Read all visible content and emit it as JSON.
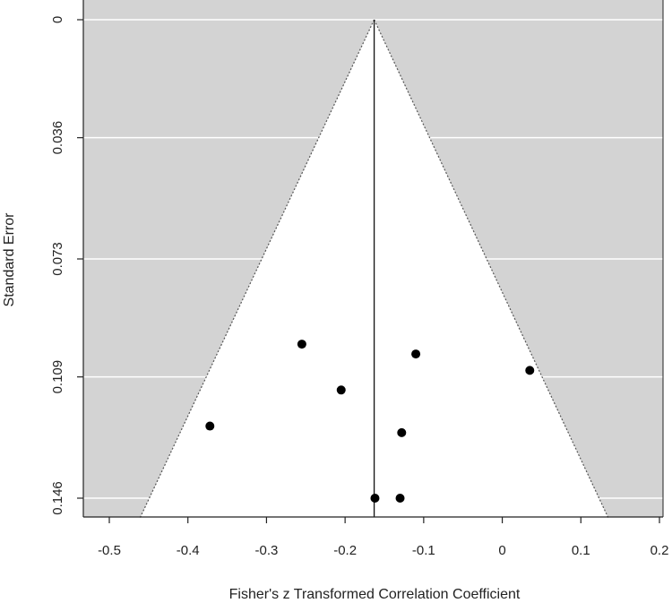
{
  "chart_data": {
    "type": "scatter",
    "subtype": "funnel-plot",
    "xlabel": "Fisher's z Transformed Correlation Coefficient",
    "ylabel": "Standard Error",
    "xlim": [
      -0.535,
      0.205
    ],
    "ylim": [
      0,
      0.152
    ],
    "y_reversed": true,
    "x_ticks": [
      -0.5,
      -0.4,
      -0.3,
      -0.2,
      -0.1,
      0,
      0.1,
      0.2
    ],
    "x_tick_labels": [
      "-0.5",
      "-0.4",
      "-0.3",
      "-0.2",
      "-0.1",
      "0",
      "0.1",
      "0.2"
    ],
    "y_ticks": [
      0,
      0.036,
      0.073,
      0.109,
      0.146
    ],
    "y_tick_labels": [
      "0",
      "0.036",
      "0.073",
      "0.109",
      "0.146"
    ],
    "grid": true,
    "summary_estimate": -0.163,
    "funnel_z": 1.96,
    "points": [
      {
        "x": -0.255,
        "y": 0.099
      },
      {
        "x": -0.11,
        "y": 0.102
      },
      {
        "x": 0.035,
        "y": 0.107
      },
      {
        "x": -0.205,
        "y": 0.113
      },
      {
        "x": -0.372,
        "y": 0.124
      },
      {
        "x": -0.128,
        "y": 0.126
      },
      {
        "x": -0.162,
        "y": 0.146
      },
      {
        "x": -0.13,
        "y": 0.146
      }
    ],
    "colors": {
      "region": "#d3d3d3",
      "funnel": "#ffffff",
      "grid": "#ffffff",
      "point": "#000000",
      "axis": "#222222"
    }
  }
}
